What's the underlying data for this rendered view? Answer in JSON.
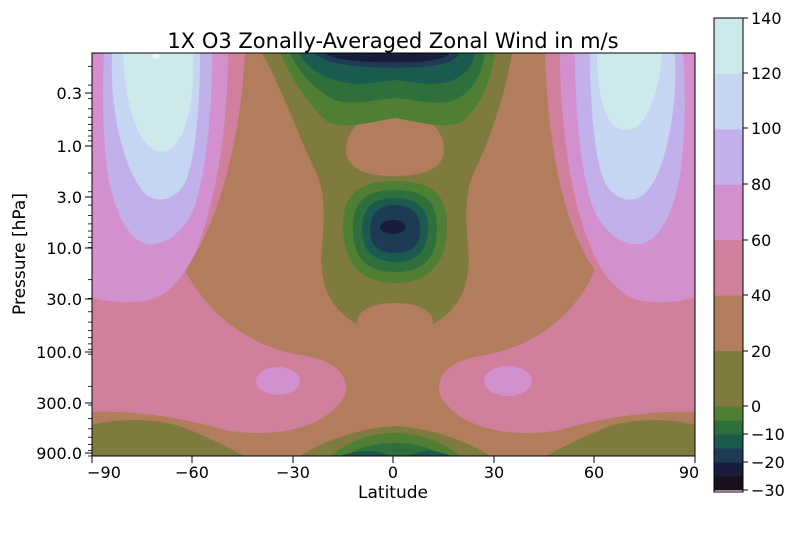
{
  "chart_data": {
    "type": "contour",
    "title": "1X O3 Zonally-Averaged Zonal Wind in m/s",
    "xlabel": "Latitude",
    "ylabel": "Pressure [hPa]",
    "xlim": [
      -90,
      90
    ],
    "x_ticks": [
      -90,
      -60,
      -30,
      0,
      30,
      60,
      90
    ],
    "x_tick_labels": [
      "−90",
      "−60",
      "−30",
      "0",
      "30",
      "60",
      "90"
    ],
    "y_scale": "log",
    "y_inverted": true,
    "ylim": [
      900,
      0.15
    ],
    "y_ticks": [
      0.3,
      1.0,
      3.0,
      10.0,
      30.0,
      100.0,
      300.0,
      900.0
    ],
    "y_tick_labels": [
      "0.3",
      "1.0",
      "3.0",
      "10.0",
      "30.0",
      "100.0",
      "300.0",
      "900.0"
    ],
    "colorbar": {
      "levels": [
        -30,
        -25,
        -20,
        -15,
        -10,
        -5,
        0,
        20,
        40,
        60,
        80,
        100,
        120,
        140
      ],
      "tick_values": [
        -30,
        -20,
        -10,
        0,
        20,
        40,
        60,
        80,
        100,
        120,
        140
      ],
      "tick_labels": [
        "−30",
        "−20",
        "−10",
        "0",
        "20",
        "40",
        "60",
        "80",
        "100",
        "120",
        "140"
      ],
      "colors": [
        "#1a0f1f",
        "#191c3a",
        "#1d3b55",
        "#1b5a4e",
        "#2e6f3b",
        "#4f7f35",
        "#7f7b3e",
        "#b17d5d",
        "#d07f9c",
        "#d291ce",
        "#c2b0ea",
        "#c5d5f2",
        "#cde9ec",
        "#e9f7f0"
      ]
    },
    "features": [
      {
        "kind": "jet_max",
        "lat": -70,
        "pressure": 0.3,
        "value": 130
      },
      {
        "kind": "jet_max",
        "lat": 70,
        "pressure": 0.3,
        "value": 110
      },
      {
        "kind": "easterly_min",
        "lat": 0,
        "pressure": 0.15,
        "value": -25
      },
      {
        "kind": "easterly_min",
        "lat": 0,
        "pressure": 6,
        "value": -25
      },
      {
        "kind": "westerly_max",
        "lat": -35,
        "pressure": 200,
        "value": 42
      },
      {
        "kind": "westerly_max",
        "lat": 35,
        "pressure": 200,
        "value": 42
      },
      {
        "kind": "easterly_min",
        "lat": 0,
        "pressure": 800,
        "value": -12
      }
    ]
  }
}
